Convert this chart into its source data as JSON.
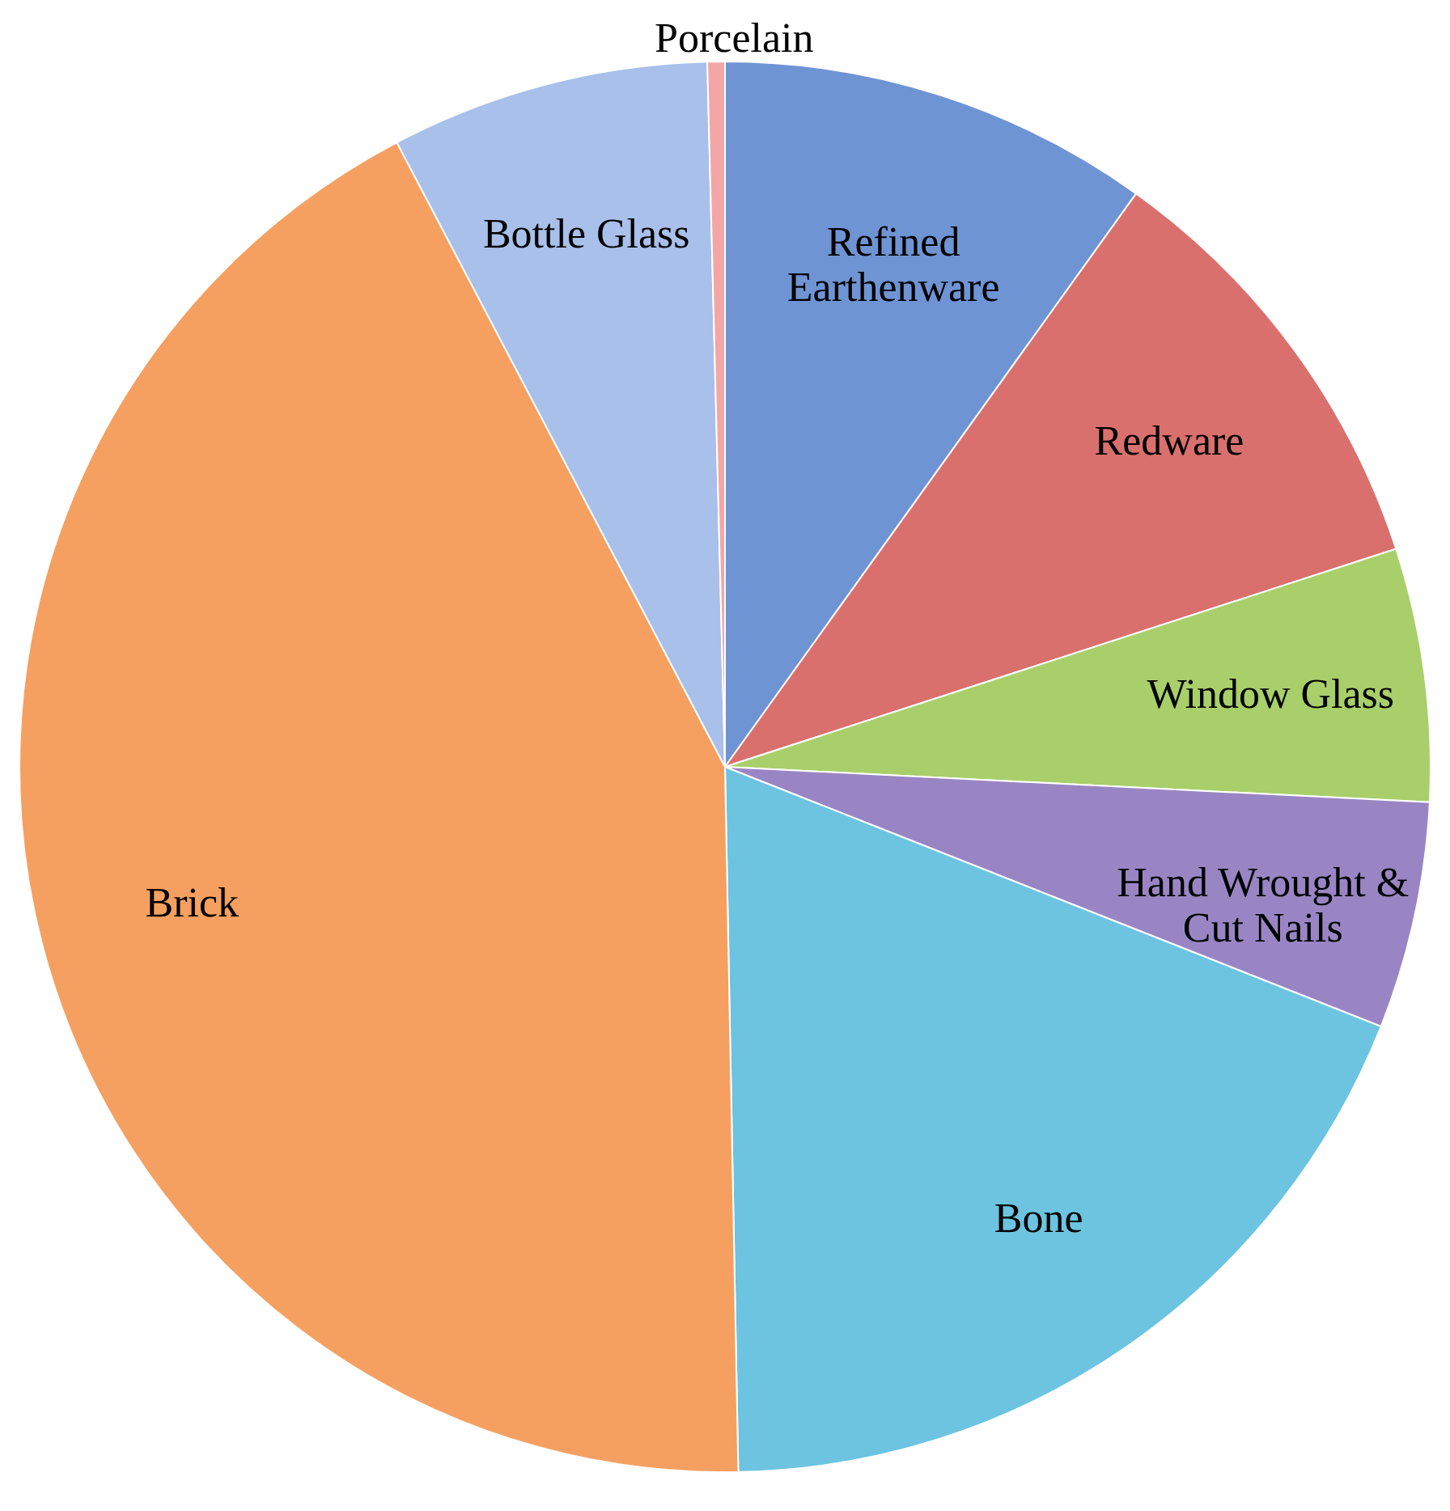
{
  "chart_data": {
    "type": "pie",
    "categories": [
      "Refined\nEarthenware",
      "Redware",
      "Window Glass",
      "Hand Wrought &\nCut Nails",
      "Bone",
      "Brick",
      "Bottle Glass",
      "Porcelain"
    ],
    "values": [
      9.9,
      10.1,
      5.8,
      5.2,
      18.7,
      42.6,
      7.3,
      0.4
    ],
    "colors": [
      "#6f94d4",
      "#d9706e",
      "#a8cf6a",
      "#9a85c4",
      "#6cc4e0",
      "#f5a060",
      "#a8c0ea",
      "#f4a6a6"
    ]
  }
}
